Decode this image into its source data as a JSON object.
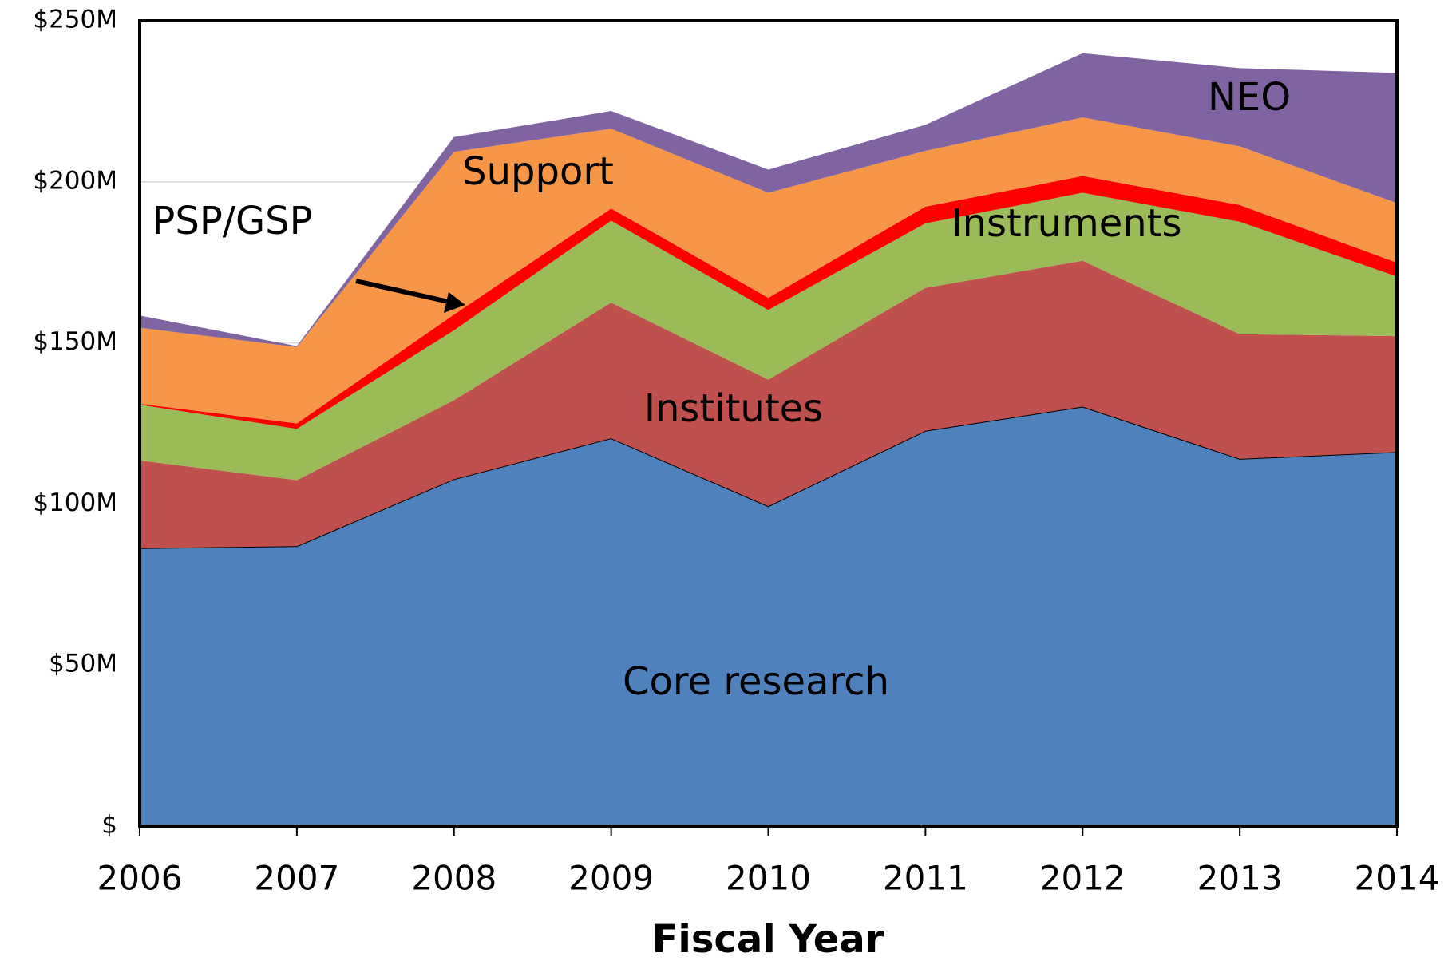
{
  "chart_data": {
    "type": "stacked-area",
    "x_label": "Fiscal Year",
    "categories": [
      "2006",
      "2007",
      "2008",
      "2009",
      "2010",
      "2011",
      "2012",
      "2013",
      "2014"
    ],
    "series": [
      {
        "name": "Core research",
        "color": "#4f81bd",
        "values": [
          86.3,
          86.9,
          107.7,
          120.4,
          99.3,
          122.7,
          130.2,
          114.0,
          116.1
        ]
      },
      {
        "name": "Institutes",
        "color": "#c0504d",
        "values": [
          27.2,
          20.5,
          24.5,
          42.1,
          39.3,
          44.4,
          45.3,
          38.7,
          36.0
        ]
      },
      {
        "name": "Instruments",
        "color": "#9bbb59",
        "values": [
          17.3,
          15.9,
          21.7,
          25.4,
          21.6,
          20.0,
          21.1,
          34.9,
          18.5
        ]
      },
      {
        "name": "PSP/GSP",
        "color": "#ff0000",
        "values": [
          0.3,
          1.7,
          4.9,
          3.8,
          3.8,
          5.2,
          5.2,
          5.2,
          4.3
        ]
      },
      {
        "name": "Support",
        "color": "#f79646",
        "values": [
          23.6,
          23.7,
          50.5,
          24.8,
          32.6,
          17.3,
          18.2,
          18.2,
          18.5
        ]
      },
      {
        "name": "NEO",
        "color": "#8064a2",
        "values": [
          3.8,
          0.3,
          4.6,
          5.5,
          7.2,
          8.1,
          19.9,
          24.3,
          40.4
        ]
      }
    ],
    "ylim": [
      0,
      250
    ],
    "yticks": [
      {
        "value": 0,
        "label": "$"
      },
      {
        "value": 50,
        "label": "$50M"
      },
      {
        "value": 100,
        "label": "$100M"
      },
      {
        "value": 150,
        "label": "$150M"
      },
      {
        "value": 200,
        "label": "$200M"
      },
      {
        "value": 250,
        "label": "$250M"
      }
    ],
    "grid": true
  }
}
